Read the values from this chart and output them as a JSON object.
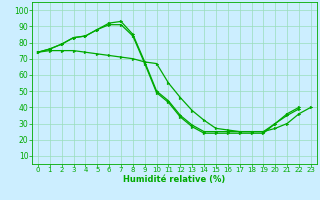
{
  "xlabel": "Humidité relative (%)",
  "background_color": "#cceeff",
  "grid_color": "#99ddbb",
  "line_color": "#00aa00",
  "xlim": [
    -0.5,
    23.5
  ],
  "ylim": [
    5,
    105
  ],
  "xticks": [
    0,
    1,
    2,
    3,
    4,
    5,
    6,
    7,
    8,
    9,
    10,
    11,
    12,
    13,
    14,
    15,
    16,
    17,
    18,
    19,
    20,
    21,
    22,
    23
  ],
  "yticks": [
    10,
    20,
    30,
    40,
    50,
    60,
    70,
    80,
    90,
    100
  ],
  "series_x": [
    [
      0,
      1,
      2,
      3,
      4,
      5,
      6,
      7,
      8,
      9,
      10,
      11,
      12,
      13,
      14,
      15,
      16,
      17,
      18,
      19,
      20,
      21,
      22
    ],
    [
      0,
      1,
      2,
      3,
      4,
      5,
      6,
      7,
      8,
      9,
      10,
      11,
      12,
      13,
      14,
      15,
      16,
      17,
      18,
      19,
      20,
      21,
      22,
      23
    ],
    [
      0,
      1,
      2,
      3,
      4,
      5,
      6,
      7,
      8,
      9,
      10,
      11,
      12,
      13,
      14,
      15,
      16,
      17,
      18,
      19,
      20,
      21,
      22
    ]
  ],
  "series_y": [
    [
      74,
      76,
      79,
      83,
      84,
      88,
      92,
      93,
      85,
      68,
      50,
      44,
      35,
      29,
      25,
      25,
      25,
      25,
      25,
      25,
      30,
      36,
      40
    ],
    [
      74,
      75,
      75,
      75,
      74,
      73,
      72,
      71,
      70,
      68,
      67,
      55,
      46,
      38,
      32,
      27,
      26,
      25,
      25,
      25,
      27,
      30,
      36,
      40
    ],
    [
      74,
      76,
      79,
      83,
      84,
      88,
      91,
      91,
      84,
      67,
      49,
      43,
      34,
      28,
      24,
      24,
      24,
      24,
      24,
      24,
      30,
      35,
      39
    ]
  ],
  "xlabel_fontsize": 6,
  "tick_fontsize_x": 5,
  "tick_fontsize_y": 5.5,
  "linewidth": 0.9,
  "markersize": 2.0
}
